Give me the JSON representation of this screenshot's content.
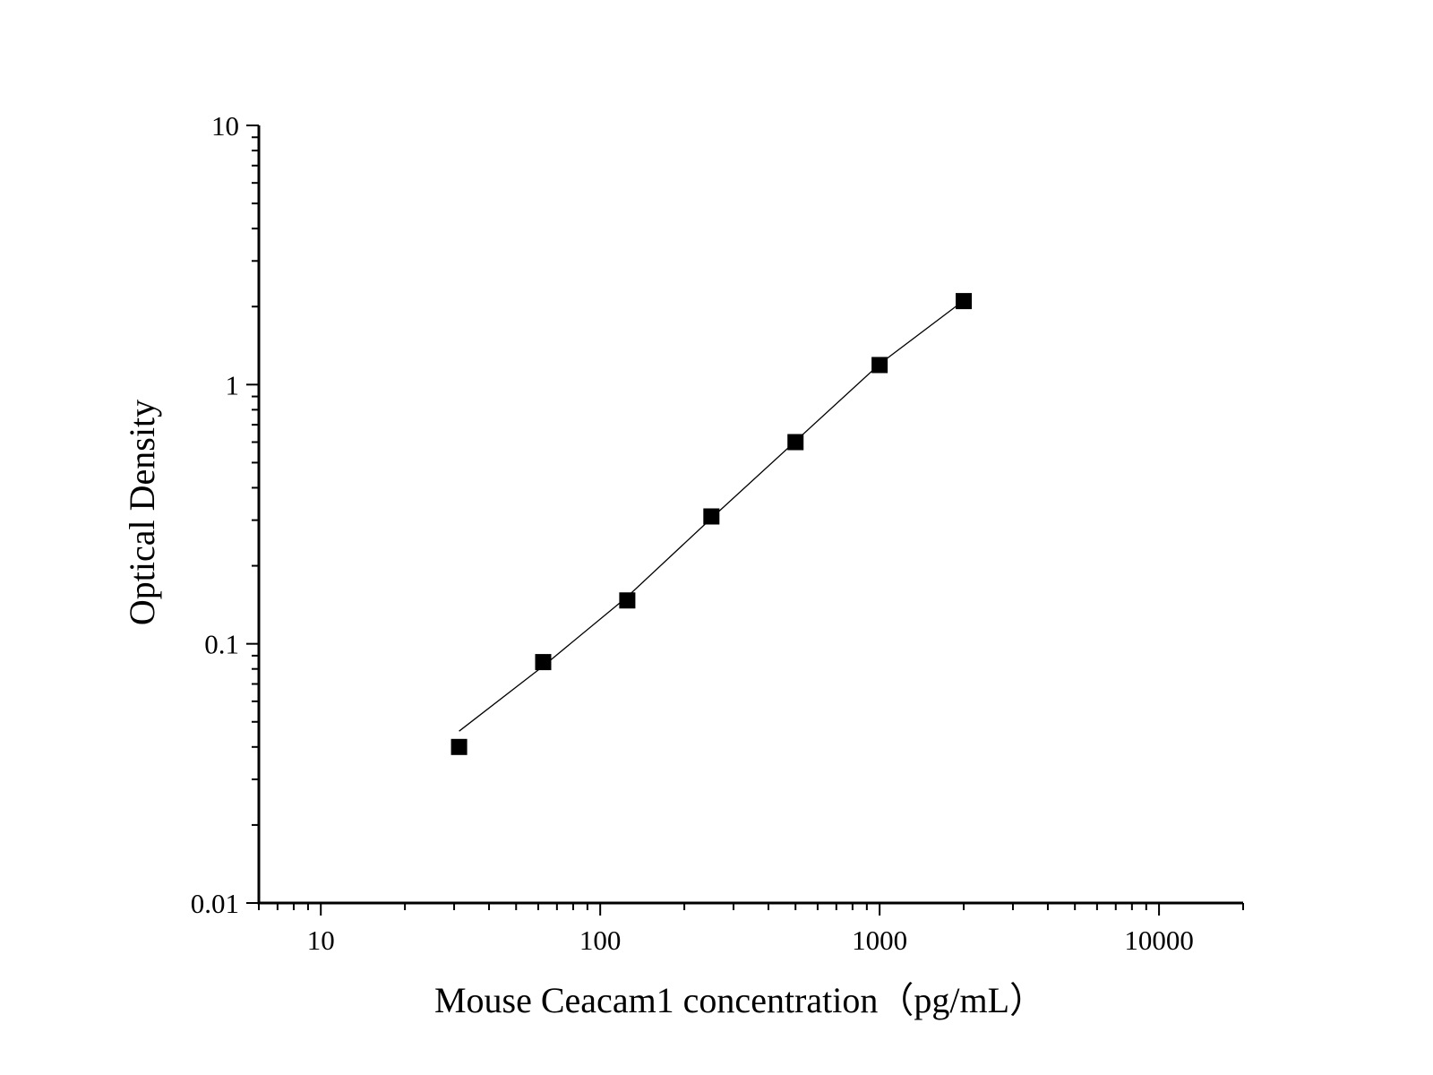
{
  "chart_data": {
    "type": "scatter",
    "title": "",
    "xlabel": "Mouse Ceacam1 concentration（pg/mL）",
    "ylabel": "Optical Density",
    "x_scale": "log",
    "y_scale": "log",
    "xlim": [
      6,
      20000
    ],
    "ylim": [
      0.01,
      10
    ],
    "x_tick_labels": [
      "10",
      "100",
      "1000",
      "10000"
    ],
    "x_tick_values": [
      10,
      100,
      1000,
      10000
    ],
    "y_tick_labels": [
      "0.01",
      "0.1",
      "1",
      "10"
    ],
    "y_tick_values": [
      0.01,
      0.1,
      1,
      10
    ],
    "grid": false,
    "marker": "square",
    "color": "#000000",
    "series": [
      {
        "x": [
          31.25,
          62.5,
          125,
          250,
          500,
          1000,
          2000
        ],
        "y": [
          0.04,
          0.085,
          0.147,
          0.31,
          0.6,
          1.19,
          2.1
        ]
      }
    ],
    "fit_line": {
      "x": [
        31.25,
        62.5,
        125,
        250,
        500,
        1000,
        2000
      ],
      "y": [
        0.046,
        0.082,
        0.152,
        0.305,
        0.605,
        1.2,
        2.11
      ]
    }
  }
}
